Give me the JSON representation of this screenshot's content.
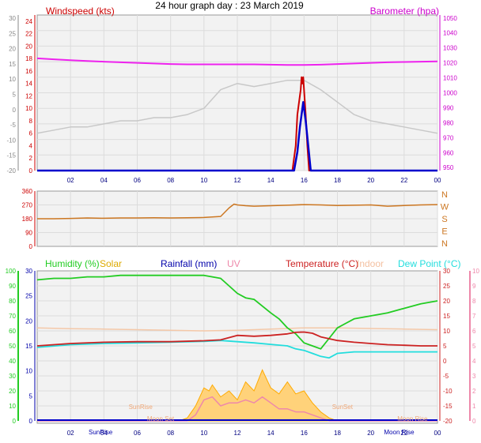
{
  "page_title": "24 hour graph day : 23 March 2019",
  "chart_data": [
    {
      "id": "wind_baro",
      "type": "line",
      "title": "24 hour graph day : 23 March 2019",
      "labels": {
        "left": "Windspeed (kts)",
        "right": "Barometer (hpa)"
      },
      "x_ticks": [
        "02",
        "04",
        "06",
        "08",
        "10",
        "12",
        "14",
        "16",
        "18",
        "20",
        "22",
        "00"
      ],
      "x_range": [
        0,
        24
      ],
      "y_outer_ticks": [
        "30",
        "25",
        "20",
        "15",
        "10",
        "5",
        "0",
        "-5",
        "-10",
        "-15",
        "-20"
      ],
      "y_left_ticks": [
        "24",
        "22",
        "20",
        "18",
        "16",
        "14",
        "12",
        "10",
        "8",
        "6",
        "4",
        "2",
        "0"
      ],
      "y_left_range": [
        0,
        25
      ],
      "y_right_ticks": [
        "1050",
        "1040",
        "1030",
        "1020",
        "1010",
        "1000",
        "990",
        "980",
        "970",
        "960",
        "950"
      ],
      "y_right_range": [
        948,
        1052
      ],
      "colors": {
        "wind": "#cc0000",
        "gust": "#0000cc",
        "baro": "#ee22ee",
        "temp_grey": "#c8c8c8",
        "left_axis": "#cc0000",
        "right_axis": "#cc00cc"
      },
      "series": [
        {
          "key": "baro",
          "x": [
            0,
            1,
            2,
            3,
            4,
            5,
            6,
            7,
            8,
            9,
            10,
            11,
            12,
            13,
            14,
            15,
            16,
            17,
            18,
            19,
            20,
            21,
            22,
            23,
            24
          ],
          "y": [
            1023,
            1022.4,
            1021.8,
            1021.2,
            1020.8,
            1020.4,
            1020,
            1019.6,
            1019.2,
            1019,
            1019,
            1019,
            1019,
            1019,
            1018.8,
            1018.6,
            1018.6,
            1018.8,
            1019.2,
            1019.6,
            1020,
            1020.4,
            1020.6,
            1020.8,
            1021
          ]
        },
        {
          "key": "grey",
          "x": [
            0,
            1,
            2,
            3,
            4,
            5,
            6,
            7,
            8,
            9,
            10,
            11,
            12,
            13,
            14,
            15,
            16,
            17,
            18,
            19,
            20,
            21,
            22,
            23,
            24
          ],
          "y": [
            6,
            6.5,
            7,
            7,
            7.5,
            8,
            8,
            8.5,
            8.5,
            9,
            10,
            13,
            14,
            13.5,
            14,
            14.5,
            14.5,
            13,
            11,
            9,
            8,
            7.5,
            7,
            6.5,
            6
          ]
        },
        {
          "key": "wind",
          "x": [
            0,
            15.3,
            15.5,
            15.6,
            15.7,
            15.8,
            15.85,
            15.9,
            15.95,
            16.0,
            16.1,
            16.2,
            16.3,
            24
          ],
          "y": [
            0,
            0,
            4,
            9,
            11,
            13,
            15,
            14,
            15,
            13,
            9,
            4,
            0,
            0
          ]
        },
        {
          "key": "gust",
          "x": [
            0,
            15.4,
            15.6,
            15.75,
            15.85,
            15.95,
            16.0,
            16.1,
            16.25,
            16.4,
            24
          ],
          "y": [
            0,
            0,
            3,
            7,
            9,
            11,
            10,
            8,
            4,
            0,
            0
          ]
        }
      ]
    },
    {
      "id": "wind_dir",
      "type": "line",
      "x_range": [
        0,
        24
      ],
      "y_left_ticks": [
        "360",
        "270",
        "180",
        "90",
        "0"
      ],
      "y_range": [
        0,
        360
      ],
      "compass": [
        "N",
        "W",
        "S",
        "E",
        "N"
      ],
      "colors": {
        "dir": "#cc7722",
        "left_axis": "#cc0000",
        "compass": "#cc7722"
      },
      "series": [
        {
          "key": "dir",
          "x": [
            0,
            1,
            2,
            3,
            4,
            5,
            6,
            7,
            8,
            9,
            10,
            11,
            11.5,
            11.8,
            12,
            12.5,
            13,
            14,
            15,
            16,
            17,
            18,
            19,
            20,
            21,
            22,
            23,
            24
          ],
          "y": [
            180,
            180,
            182,
            185,
            183,
            185,
            185,
            186,
            185,
            186,
            188,
            195,
            250,
            275,
            270,
            265,
            262,
            265,
            268,
            272,
            270,
            266,
            268,
            270,
            262,
            266,
            270,
            272
          ]
        }
      ]
    },
    {
      "id": "weather",
      "type": "line",
      "labels": {
        "humidity": "Humidity (%)",
        "solar": "Solar",
        "rainfall": "Rainfall (mm)",
        "uv": "UV",
        "temperature": "Temperature (°C)",
        "indoor": "Indoor",
        "dewpoint": "Dew Point (°C)"
      },
      "x_ticks": [
        "02",
        "04",
        "06",
        "08",
        "10",
        "12",
        "14",
        "16",
        "18",
        "20",
        "22",
        "00"
      ],
      "x_range": [
        0,
        24
      ],
      "y_humidity_ticks": [
        "100",
        "90",
        "80",
        "70",
        "60",
        "50",
        "40",
        "30",
        "20",
        "10",
        "0"
      ],
      "y_humidity_range": [
        0,
        100
      ],
      "y_rain_ticks": [
        "30",
        "25",
        "20",
        "15",
        "10",
        "5",
        "0"
      ],
      "y_temp_ticks": [
        "30",
        "25",
        "20",
        "15",
        "10",
        "5",
        "0",
        "-5",
        "-10",
        "-15",
        "-20"
      ],
      "y_temp_range": [
        -20,
        30
      ],
      "y_uv_ticks": [
        "10",
        "9",
        "8",
        "7",
        "6",
        "5",
        "4",
        "3",
        "2",
        "1",
        "0"
      ],
      "annotations": [
        {
          "text": "SunRise",
          "x": 6.2,
          "y": -16,
          "color": "#f0a878"
        },
        {
          "text": "SunSet",
          "x": 18.3,
          "y": -16,
          "color": "#f0a878"
        },
        {
          "text": "Moon Set",
          "x": 7.4,
          "y": -20,
          "color": "#f0a878"
        },
        {
          "text": "Moon Rise",
          "x": 22.5,
          "y": -20,
          "color": "#f0a878"
        },
        {
          "text": "SunRise",
          "x": 3.8,
          "y": -21,
          "color": "#0000aa"
        },
        {
          "text": "Moon Rise",
          "x": 21.7,
          "y": -21,
          "color": "#0000aa"
        }
      ],
      "colors": {
        "humidity": "#22cc22",
        "solar": "#ffaa00",
        "solar_fill": "#ffd27a",
        "rainfall": "#0000cc",
        "uv": "#ee88aa",
        "temperature": "#cc2222",
        "indoor": "#f4c8a8",
        "dewpoint": "#22dddd",
        "humidity_axis": "#22cc22",
        "temp_axis": "#cc2222",
        "uv_axis": "#ee88aa"
      },
      "series": [
        {
          "key": "humidity",
          "x": [
            0,
            1,
            2,
            3,
            4,
            5,
            6,
            7,
            8,
            9,
            10,
            10.5,
            11,
            11.5,
            12,
            12.5,
            13,
            14,
            14.5,
            15,
            15.5,
            16,
            16.5,
            17,
            17.5,
            18,
            18.5,
            19,
            20,
            21,
            22,
            23,
            24
          ],
          "y": [
            94,
            95,
            95,
            96,
            96,
            97,
            97,
            97,
            97,
            97,
            97,
            96,
            95,
            90,
            85,
            82,
            81,
            72,
            68,
            62,
            58,
            52,
            50,
            48,
            55,
            62,
            65,
            68,
            70,
            72,
            75,
            78,
            80
          ]
        },
        {
          "key": "indoor",
          "x": [
            0,
            2,
            4,
            6,
            8,
            10,
            12,
            14,
            16,
            18,
            20,
            22,
            24
          ],
          "y": [
            11,
            10.7,
            10.6,
            10.4,
            10.2,
            10,
            10.2,
            10.6,
            11,
            11,
            10.8,
            10.6,
            10.4
          ]
        },
        {
          "key": "temperature",
          "x": [
            0,
            2,
            4,
            6,
            8,
            10,
            11,
            12,
            13,
            14,
            15,
            15.5,
            16,
            16.5,
            17,
            18,
            19,
            20,
            21,
            22,
            23,
            24
          ],
          "y": [
            5,
            5.8,
            6.2,
            6.4,
            6.4,
            6.7,
            7,
            8.5,
            8.2,
            8.5,
            9,
            9.5,
            9.6,
            9.2,
            8,
            6.8,
            6.2,
            5.8,
            5.4,
            5.2,
            5,
            5
          ]
        },
        {
          "key": "dewpoint",
          "x": [
            0,
            2,
            4,
            6,
            8,
            10,
            11,
            12,
            13,
            14,
            15,
            15.5,
            16,
            16.5,
            17,
            17.5,
            18,
            19,
            20,
            21,
            22,
            23,
            24
          ],
          "y": [
            4.5,
            5.4,
            5.8,
            6,
            6.2,
            6.5,
            6.8,
            6.4,
            6,
            5.5,
            5,
            4,
            3.5,
            2.5,
            1.5,
            1,
            2.5,
            3,
            3,
            3,
            3,
            3,
            3
          ]
        },
        {
          "key": "solar",
          "x": [
            0,
            8.5,
            9,
            9.5,
            10,
            10.3,
            10.5,
            11,
            11.5,
            12,
            12.5,
            13,
            13.5,
            14,
            14.5,
            15,
            15.5,
            16,
            16.5,
            17,
            17.5,
            18,
            24
          ],
          "y": [
            -20,
            -20,
            -19,
            -15,
            -9,
            -10,
            -8,
            -12,
            -10,
            -13,
            -7,
            -10,
            -3,
            -9,
            -11,
            -7,
            -11,
            -10,
            -14,
            -17,
            -19,
            -20,
            -20
          ]
        },
        {
          "key": "uv",
          "x": [
            0,
            9,
            9.5,
            10,
            10.5,
            11,
            11.5,
            12,
            12.5,
            13,
            13.5,
            14,
            14.5,
            15,
            15.5,
            16,
            16.5,
            17,
            17.5,
            24
          ],
          "y": [
            -20,
            -20,
            -18,
            -13,
            -12,
            -15,
            -14,
            -14,
            -13,
            -14,
            -12,
            -14,
            -16,
            -16,
            -17,
            -17,
            -18,
            -19,
            -20,
            -20
          ]
        },
        {
          "key": "rainfall",
          "x": [
            0,
            24
          ],
          "y": [
            0,
            0
          ]
        }
      ]
    }
  ]
}
